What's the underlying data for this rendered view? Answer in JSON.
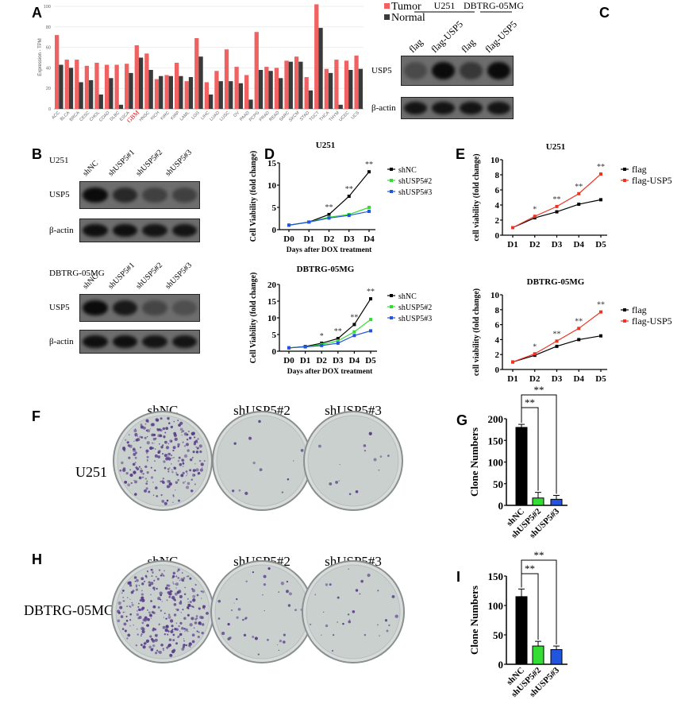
{
  "panel_labels": [
    "A",
    "B",
    "C",
    "D",
    "E",
    "F",
    "G",
    "H",
    "I"
  ],
  "colors": {
    "tumor": "#f06262",
    "normal": "#3a3a3a",
    "shNC": "#000000",
    "shUSP5_2": "#33dd33",
    "shUSP5_3": "#2255dd",
    "flag": "#000000",
    "flag_usp5": "#ee3322",
    "gbm_label": "#dd1111"
  },
  "blot_c": {
    "groups": [
      "U251",
      "DBTRG-05MG"
    ],
    "lanes": [
      "flag",
      "flag-USP5",
      "flag",
      "flag-USP5"
    ],
    "rows": [
      "USP5",
      "β-actin"
    ]
  },
  "blot_b": [
    {
      "cell": "U251",
      "lanes": [
        "shNC",
        "shUSP5#1",
        "shUSP5#2",
        "shUSP5#3"
      ],
      "rows": [
        "USP5",
        "β-actin"
      ]
    },
    {
      "cell": "DBTRG-05MG",
      "lanes": [
        "shNC",
        "shUSP5#1",
        "shUSP5#2",
        "shUSP5#3"
      ],
      "rows": [
        "USP5",
        "β-actin"
      ]
    }
  ],
  "plates": [
    {
      "cell": "U251",
      "conditions": [
        "shNC",
        "shUSP5#2",
        "shUSP5#3"
      ]
    },
    {
      "cell": "DBTRG-05MG",
      "conditions": [
        "shNC",
        "shUSP5#2",
        "shUSP5#3"
      ]
    }
  ],
  "chart_data": [
    {
      "type": "bar",
      "panel": "A",
      "ylabel": "Expression - TPM",
      "ylim": [
        0,
        100
      ],
      "yticks": [
        0,
        20,
        40,
        60,
        80,
        100
      ],
      "grid": true,
      "legend": "top-right",
      "categories": [
        "ACC",
        "BLCA",
        "BRCA",
        "CESC",
        "CHOL",
        "COAD",
        "DLBC",
        "ESCA",
        "GBM",
        "HNSC",
        "KICH",
        "KIRC",
        "KIRP",
        "LAML",
        "LGG",
        "LIHC",
        "LUAD",
        "LUSC",
        "OV",
        "PAAD",
        "PCPG",
        "PRAD",
        "READ",
        "SARC",
        "SKCM",
        "STAD",
        "TGCT",
        "THCA",
        "THYM",
        "UCEC",
        "UCS"
      ],
      "series": [
        {
          "name": "Tumor",
          "values": [
            72,
            48,
            48,
            42,
            45,
            43,
            43,
            44,
            62,
            54,
            29,
            33,
            45,
            27,
            69,
            26,
            37,
            58,
            41,
            33,
            75,
            41,
            40,
            47,
            51,
            31,
            102,
            39,
            48,
            47,
            52
          ]
        },
        {
          "name": "Normal",
          "values": [
            43,
            40,
            26,
            28,
            14,
            30,
            4,
            35,
            50,
            38,
            32,
            32,
            32,
            31,
            51,
            14,
            27,
            27,
            25,
            9,
            38,
            37,
            30,
            46,
            46,
            18,
            79,
            35,
            4,
            38,
            39
          ]
        }
      ]
    },
    {
      "type": "line",
      "panel": "D",
      "title": "U251",
      "ylabel": "Cell Viability (fold change)",
      "xlabel": "Days after DOX treatment",
      "x": [
        "D0",
        "D1",
        "D2",
        "D3",
        "D4"
      ],
      "ylim": [
        0,
        15
      ],
      "yticks": [
        0,
        5,
        10,
        15
      ],
      "legend": "right",
      "series": [
        {
          "name": "shNC",
          "values": [
            1,
            1.7,
            3.4,
            7.5,
            13
          ]
        },
        {
          "name": "shUSP5#2",
          "values": [
            1,
            1.7,
            2.8,
            3.4,
            5
          ]
        },
        {
          "name": "shUSP5#3",
          "values": [
            1,
            1.7,
            2.6,
            3.2,
            4.1
          ]
        }
      ],
      "significance": [
        "",
        "",
        "**",
        "**",
        "**"
      ]
    },
    {
      "type": "line",
      "panel": "D",
      "title": "DBTRG-05MG",
      "ylabel": "Cell Viability (fold change)",
      "xlabel": "Days after DOX treatment",
      "x": [
        "D0",
        "D1",
        "D2",
        "D3",
        "D4",
        "D5"
      ],
      "ylim": [
        0,
        20
      ],
      "yticks": [
        0,
        5,
        10,
        15,
        20
      ],
      "legend": "right",
      "series": [
        {
          "name": "shNC",
          "values": [
            1,
            1.4,
            2.4,
            3.8,
            8,
            15.7
          ]
        },
        {
          "name": "shUSP5#2",
          "values": [
            1,
            1.3,
            2,
            3.1,
            5.8,
            9.5
          ]
        },
        {
          "name": "shUSP5#3",
          "values": [
            1,
            1.3,
            1.7,
            2.4,
            4.7,
            6.1
          ]
        }
      ],
      "significance": [
        "",
        "",
        "*",
        "**",
        "**",
        "**"
      ]
    },
    {
      "type": "line",
      "panel": "E",
      "title": "U251",
      "ylabel": "cell viability (fold change)",
      "x": [
        "D1",
        "D2",
        "D3",
        "D4",
        "D5"
      ],
      "ylim": [
        0,
        10
      ],
      "yticks": [
        0,
        2,
        4,
        6,
        8,
        10
      ],
      "legend": "right",
      "series": [
        {
          "name": "flag",
          "values": [
            1,
            2.3,
            3.1,
            4.1,
            4.7
          ]
        },
        {
          "name": "flag-USP5",
          "values": [
            1,
            2.5,
            3.8,
            5.5,
            8.1
          ]
        }
      ],
      "significance": [
        "",
        "*",
        "**",
        "**",
        "**"
      ]
    },
    {
      "type": "line",
      "panel": "E",
      "title": "DBTRG-05MG",
      "ylabel": "cell viability (fold change)",
      "x": [
        "D1",
        "D2",
        "D3",
        "D4",
        "D5"
      ],
      "ylim": [
        0,
        10
      ],
      "yticks": [
        0,
        2,
        4,
        6,
        8,
        10
      ],
      "legend": "right",
      "series": [
        {
          "name": "flag",
          "values": [
            1,
            1.9,
            3.1,
            4,
            4.5
          ]
        },
        {
          "name": "flag-USP5",
          "values": [
            1,
            2.1,
            3.8,
            5.5,
            7.7
          ]
        }
      ],
      "significance": [
        "",
        "*",
        "**",
        "**",
        "**"
      ]
    },
    {
      "type": "bar",
      "panel": "G",
      "ylabel": "Clone Numbers",
      "categories": [
        "shNC",
        "shUSP5#2",
        "shUSP5#3"
      ],
      "values": [
        180,
        17,
        14
      ],
      "errors": [
        7,
        13,
        9
      ],
      "ylim": [
        0,
        200
      ],
      "yticks": [
        0,
        50,
        100,
        150,
        200
      ],
      "significance": [
        "**",
        "**"
      ]
    },
    {
      "type": "bar",
      "panel": "I",
      "ylabel": "Clone Numbers",
      "categories": [
        "shNC",
        "shUSP5#2",
        "shUSP5#3"
      ],
      "values": [
        115,
        31,
        25
      ],
      "errors": [
        13,
        8,
        6
      ],
      "ylim": [
        0,
        150
      ],
      "yticks": [
        0,
        50,
        100,
        150
      ],
      "significance": [
        "**",
        "**"
      ]
    }
  ]
}
